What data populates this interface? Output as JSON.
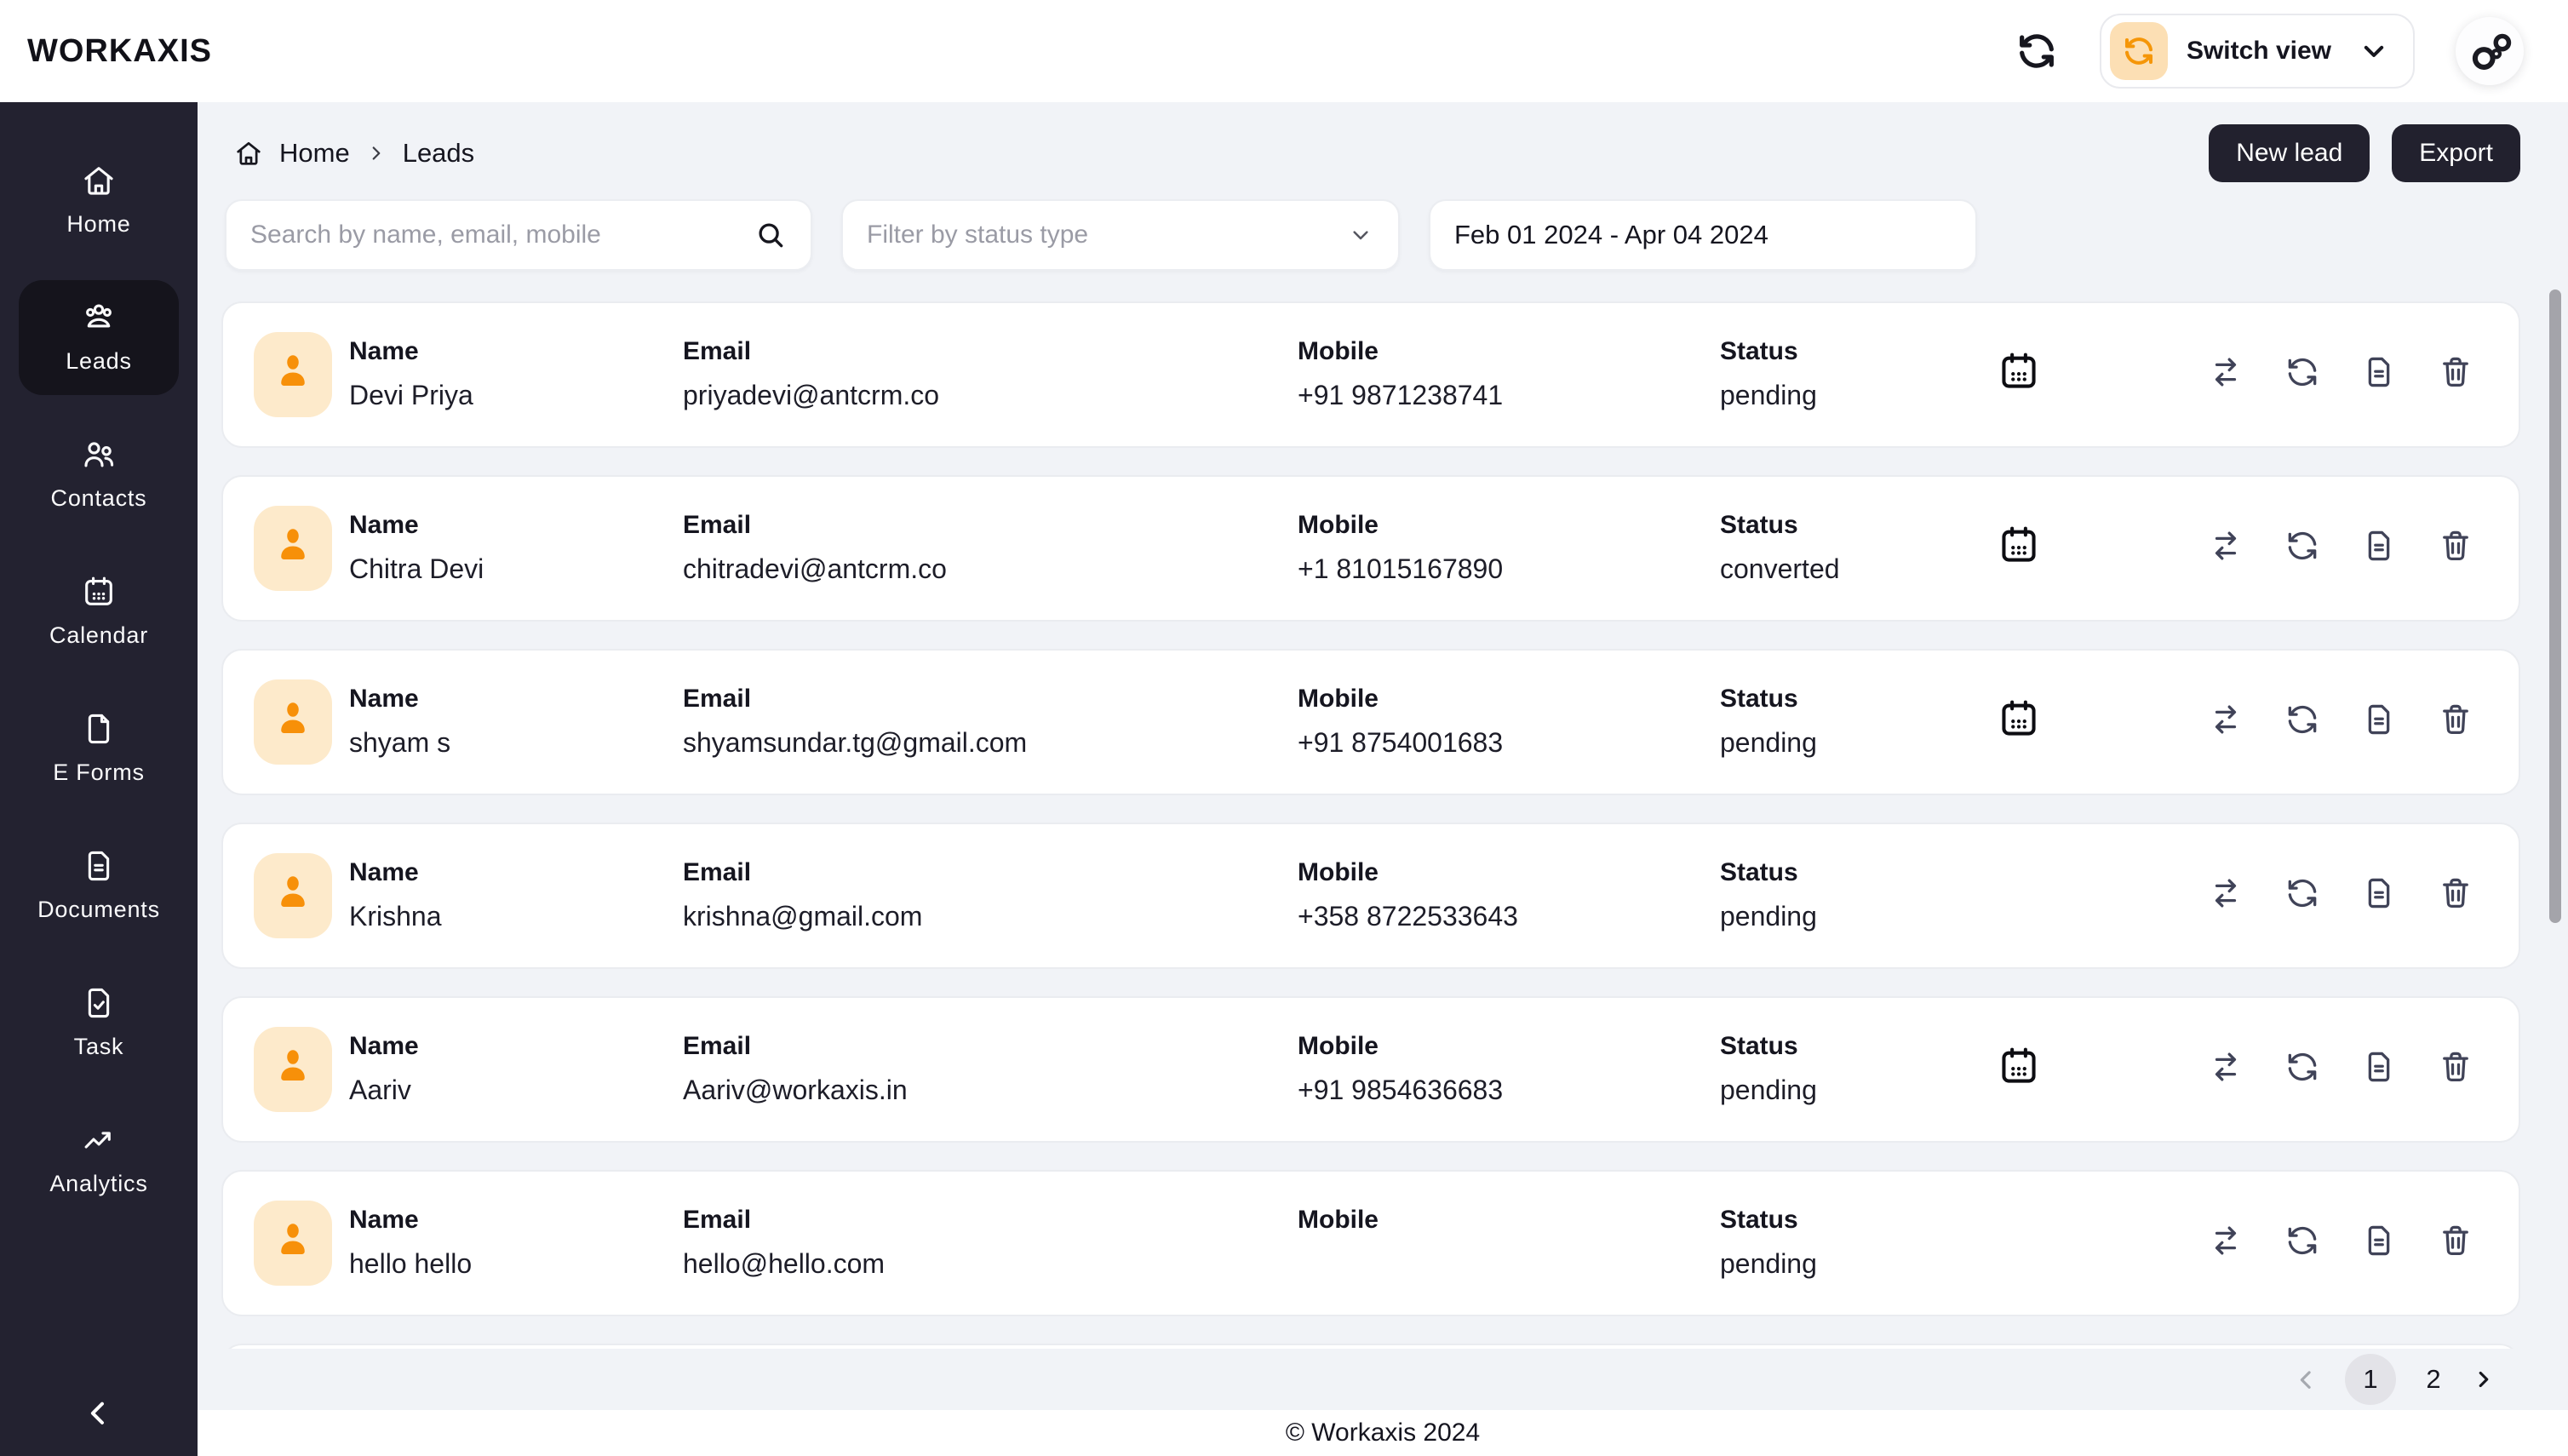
{
  "brand": {
    "logo": "WORKAXIS"
  },
  "topbar": {
    "refresh_icon": "refresh-icon",
    "switch_view_label": "Switch view",
    "avatar_icon": "bubbles-avatar-icon"
  },
  "sidebar": {
    "items": [
      {
        "id": "home",
        "label": "Home",
        "icon": "home-icon",
        "active": false
      },
      {
        "id": "leads",
        "label": "Leads",
        "icon": "leads-icon",
        "active": true
      },
      {
        "id": "contacts",
        "label": "Contacts",
        "icon": "contacts-icon",
        "active": false
      },
      {
        "id": "calendar",
        "label": "Calendar",
        "icon": "calendar-icon",
        "active": false
      },
      {
        "id": "eforms",
        "label": "E Forms",
        "icon": "eform-icon",
        "active": false
      },
      {
        "id": "documents",
        "label": "Documents",
        "icon": "documents-icon",
        "active": false
      },
      {
        "id": "task",
        "label": "Task",
        "icon": "task-icon",
        "active": false
      },
      {
        "id": "analytics",
        "label": "Analytics",
        "icon": "analytics-icon",
        "active": false
      }
    ],
    "collapse_icon": "chevron-left-icon"
  },
  "breadcrumb": {
    "home_label": "Home",
    "current": "Leads"
  },
  "header": {
    "new_lead_label": "New lead",
    "export_label": "Export"
  },
  "filters": {
    "search_placeholder": "Search by name, email, mobile",
    "status_placeholder": "Filter by status type",
    "date_range": "Feb 01 2024 - Apr 04 2024"
  },
  "list": {
    "labels": {
      "name": "Name",
      "email": "Email",
      "mobile": "Mobile",
      "status": "Status"
    },
    "action_icons": [
      "transfer-icon",
      "sync-icon",
      "document-icon",
      "trash-icon"
    ],
    "rows": [
      {
        "name": "Devi Priya",
        "email": "priyadevi@antcrm.co",
        "mobile": "+91 9871238741",
        "status": "pending",
        "has_calendar": true
      },
      {
        "name": "Chitra Devi",
        "email": "chitradevi@antcrm.co",
        "mobile": "+1 81015167890",
        "status": "converted",
        "has_calendar": true
      },
      {
        "name": "shyam s",
        "email": "shyamsundar.tg@gmail.com",
        "mobile": "+91 8754001683",
        "status": "pending",
        "has_calendar": true
      },
      {
        "name": "Krishna",
        "email": "krishna@gmail.com",
        "mobile": "+358 8722533643",
        "status": "pending",
        "has_calendar": false
      },
      {
        "name": "Aariv",
        "email": "Aariv@workaxis.in",
        "mobile": "+91 9854636683",
        "status": "pending",
        "has_calendar": true
      },
      {
        "name": "hello hello",
        "email": "hello@hello.com",
        "mobile": "",
        "status": "pending",
        "has_calendar": false
      },
      {
        "name": "",
        "email": "",
        "mobile": "",
        "status": "",
        "has_calendar": false,
        "partial": true
      }
    ]
  },
  "pagination": {
    "pages": [
      "1",
      "2"
    ],
    "active_page": "1"
  },
  "footer": {
    "text": "© Workaxis 2024"
  },
  "colors": {
    "accent_orange": "#F79009",
    "avatar_bg": "#FDEACB",
    "sidebar_bg": "#232230",
    "sidebar_active_bg": "#15141C",
    "button_dark": "#22212E",
    "content_bg": "#F1F3F7",
    "icon_slate": "#404358"
  }
}
